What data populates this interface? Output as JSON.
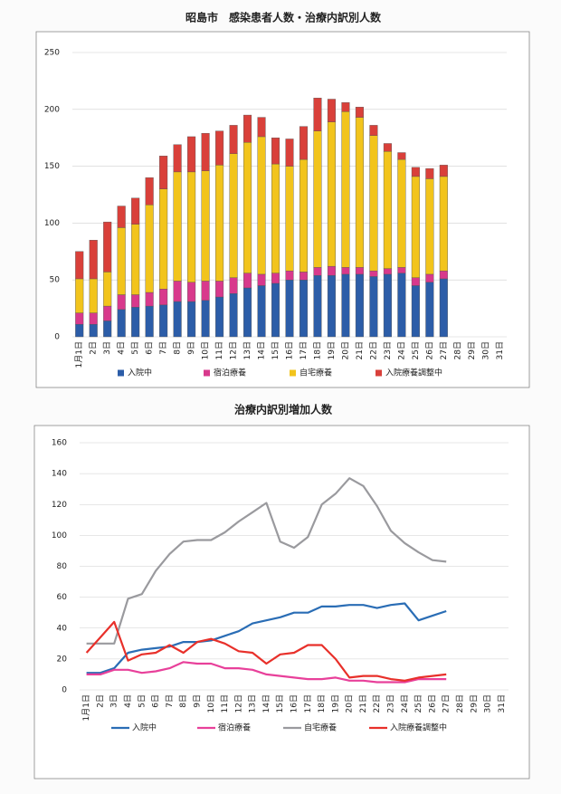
{
  "chart_data": [
    {
      "type": "bar",
      "stacked": true,
      "title": "昭島市　感染患者人数・治療内訳別人数",
      "categories": [
        "1月1日",
        "2日",
        "3日",
        "4日",
        "5日",
        "6日",
        "7日",
        "8日",
        "9日",
        "10日",
        "11日",
        "12日",
        "13日",
        "14日",
        "15日",
        "16日",
        "17日",
        "18日",
        "19日",
        "20日",
        "21日",
        "22日",
        "23日",
        "24日",
        "25日",
        "26日",
        "27日",
        "28日",
        "29日",
        "30日",
        "31日"
      ],
      "series": [
        {
          "name": "入院中",
          "color": "#2c5da8",
          "values": [
            11,
            11,
            14,
            24,
            26,
            27,
            28,
            31,
            31,
            32,
            35,
            38,
            43,
            45,
            47,
            50,
            50,
            54,
            54,
            55,
            55,
            53,
            55,
            56,
            45,
            48,
            51,
            null,
            null,
            null,
            null
          ]
        },
        {
          "name": "宿泊療養",
          "color": "#d8398c",
          "values": [
            10,
            10,
            13,
            13,
            11,
            12,
            14,
            18,
            17,
            17,
            14,
            14,
            13,
            10,
            9,
            8,
            7,
            7,
            8,
            6,
            6,
            5,
            5,
            5,
            7,
            7,
            7,
            null,
            null,
            null,
            null
          ]
        },
        {
          "name": "自宅療養",
          "color": "#f2c41c",
          "values": [
            30,
            30,
            30,
            59,
            62,
            77,
            88,
            96,
            97,
            97,
            102,
            109,
            115,
            121,
            96,
            92,
            99,
            120,
            127,
            137,
            132,
            119,
            103,
            95,
            89,
            84,
            83,
            null,
            null,
            null,
            null
          ]
        },
        {
          "name": "入院療養調整中",
          "color": "#d9403a",
          "values": [
            24,
            34,
            44,
            19,
            23,
            24,
            29,
            24,
            31,
            33,
            30,
            25,
            24,
            17,
            23,
            24,
            29,
            29,
            20,
            8,
            9,
            9,
            7,
            6,
            8,
            9,
            10,
            null,
            null,
            null,
            null
          ]
        }
      ],
      "ylim": [
        0,
        250
      ],
      "yticks": [
        0,
        50,
        100,
        150,
        200,
        250
      ],
      "grid": true,
      "legend": "bottom"
    },
    {
      "type": "line",
      "title": "治療内訳別増加人数",
      "categories": [
        "1月1日",
        "2日",
        "3日",
        "4日",
        "5日",
        "6日",
        "7日",
        "8日",
        "9日",
        "10日",
        "11日",
        "12日",
        "13日",
        "14日",
        "15日",
        "16日",
        "17日",
        "18日",
        "19日",
        "20日",
        "21日",
        "22日",
        "23日",
        "24日",
        "25日",
        "26日",
        "27日",
        "28日",
        "29日",
        "30日",
        "31日"
      ],
      "series": [
        {
          "name": "入院中",
          "color": "#2a6db5",
          "values": [
            11,
            11,
            14,
            24,
            26,
            27,
            28,
            31,
            31,
            32,
            35,
            38,
            43,
            45,
            47,
            50,
            50,
            54,
            54,
            55,
            55,
            53,
            55,
            56,
            45,
            48,
            51,
            null,
            null,
            null,
            null
          ]
        },
        {
          "name": "宿泊療養",
          "color": "#e8409a",
          "values": [
            10,
            10,
            13,
            13,
            11,
            12,
            14,
            18,
            17,
            17,
            14,
            14,
            13,
            10,
            9,
            8,
            7,
            7,
            8,
            6,
            6,
            5,
            5,
            5,
            7,
            7,
            7,
            null,
            null,
            null,
            null
          ]
        },
        {
          "name": "自宅療養",
          "color": "#9a9a9e",
          "values": [
            30,
            30,
            30,
            59,
            62,
            77,
            88,
            96,
            97,
            97,
            102,
            109,
            115,
            121,
            96,
            92,
            99,
            120,
            127,
            137,
            132,
            119,
            103,
            95,
            89,
            84,
            83,
            null,
            null,
            null,
            null
          ]
        },
        {
          "name": "入院療養調整中",
          "color": "#e8302a",
          "values": [
            24,
            34,
            44,
            19,
            23,
            24,
            29,
            24,
            31,
            33,
            30,
            25,
            24,
            17,
            23,
            24,
            29,
            29,
            20,
            8,
            9,
            9,
            7,
            6,
            8,
            9,
            10,
            null,
            null,
            null,
            null
          ]
        }
      ],
      "ylim": [
        0,
        160
      ],
      "yticks": [
        0,
        20,
        40,
        60,
        80,
        100,
        120,
        140,
        160
      ],
      "grid": true,
      "legend": "bottom"
    }
  ]
}
